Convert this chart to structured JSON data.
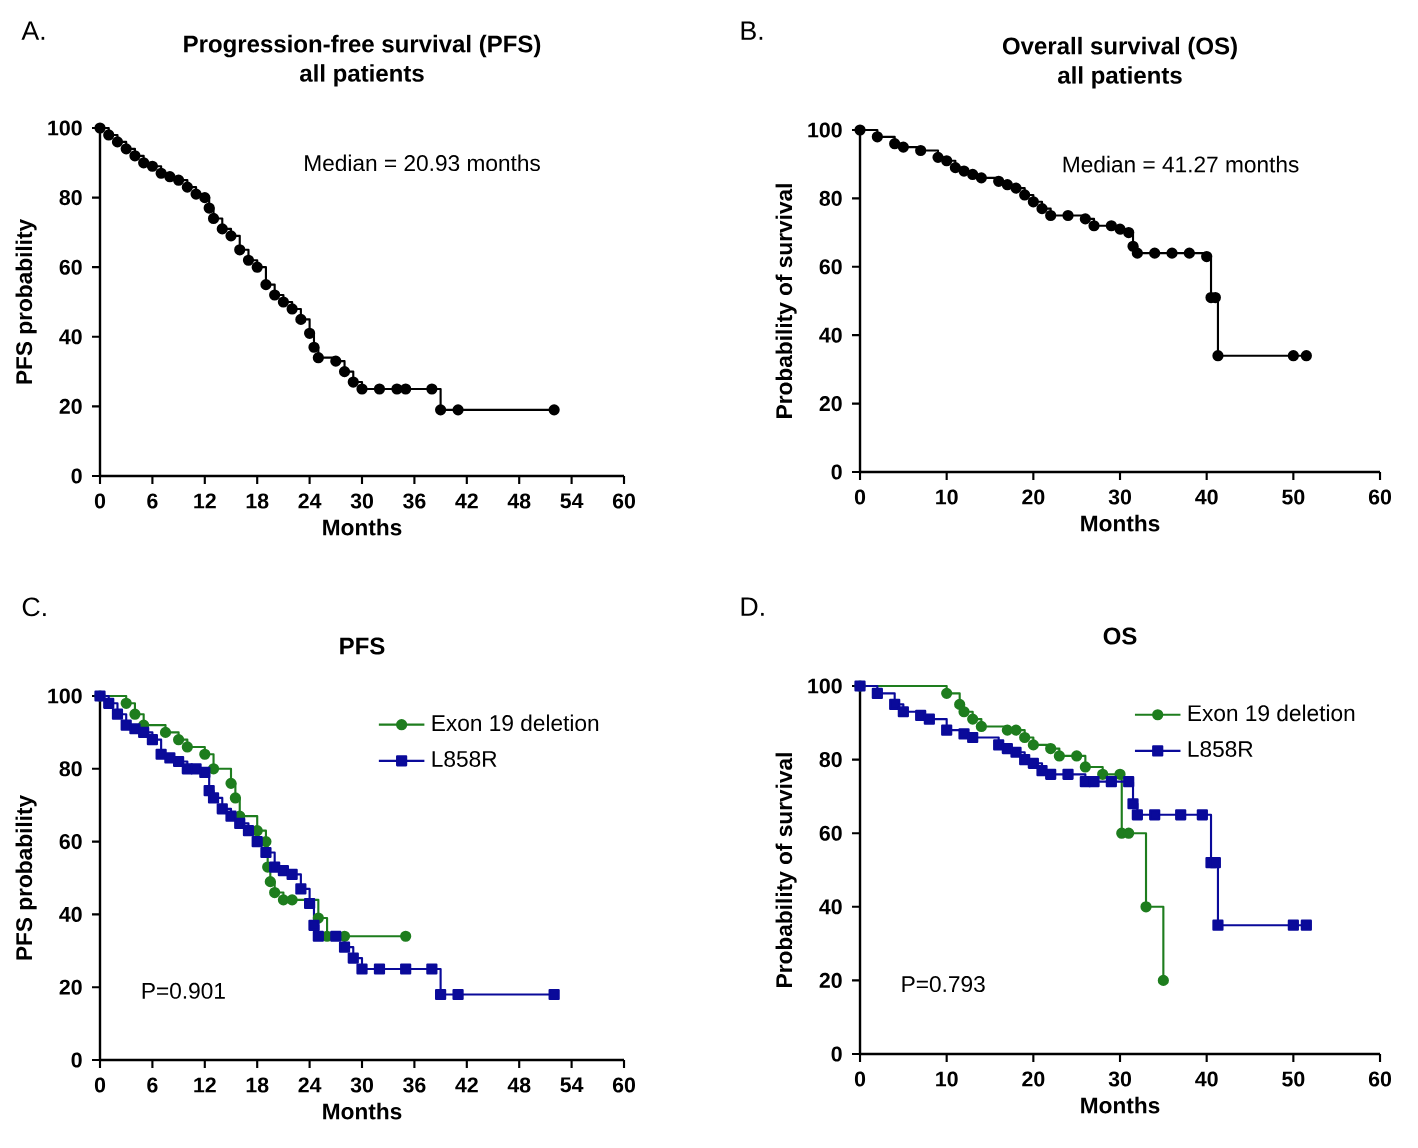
{
  "chart_data": [
    {
      "type": "step",
      "title": "Progression-free survival (PFS)",
      "subtitle": "all patients",
      "xlabel": "Months",
      "ylabel": "PFS probability",
      "annotations": [
        "A.",
        "Median = 20.93 months"
      ],
      "xlim": [
        0,
        60
      ],
      "ylim": [
        0,
        100
      ],
      "xticks": [
        0,
        6,
        12,
        18,
        24,
        30,
        36,
        42,
        48,
        54,
        60
      ],
      "yticks": [
        0,
        20,
        40,
        60,
        80,
        100
      ],
      "marker": "circle",
      "series": [
        {
          "color": "#000000",
          "x": [
            0,
            1,
            2,
            3,
            4,
            5,
            6,
            7,
            8,
            9,
            10,
            11,
            12,
            12.5,
            13,
            14,
            15,
            16,
            17,
            18,
            19,
            20,
            21,
            22,
            23,
            24,
            24.5,
            25,
            27,
            28,
            29,
            30,
            32,
            34,
            35,
            38,
            39,
            41,
            52
          ],
          "values": [
            100,
            98,
            96,
            94,
            92,
            90,
            89,
            87,
            86,
            85,
            83,
            81,
            80,
            77,
            74,
            71,
            69,
            65,
            62,
            60,
            55,
            52,
            50,
            48,
            45,
            41,
            37,
            34,
            33,
            30,
            27,
            25,
            25,
            25,
            25,
            25,
            19,
            19,
            19
          ]
        }
      ]
    },
    {
      "type": "step",
      "title": "Overall survival (OS)",
      "subtitle": "all patients",
      "xlabel": "Months",
      "ylabel": "Probability of survival",
      "annotations": [
        "B.",
        "Median = 41.27 months"
      ],
      "xlim": [
        0,
        60
      ],
      "ylim": [
        0,
        100
      ],
      "xticks": [
        0,
        10,
        20,
        30,
        40,
        50,
        60
      ],
      "yticks": [
        0,
        20,
        40,
        60,
        80,
        100
      ],
      "marker": "circle",
      "series": [
        {
          "color": "#000000",
          "x": [
            0,
            2,
            4,
            5,
            7,
            9,
            10,
            11,
            12,
            13,
            14,
            16,
            17,
            18,
            19,
            20,
            21,
            22,
            24,
            26,
            27,
            29,
            30,
            31,
            31.5,
            32,
            34,
            36,
            38,
            40,
            40.5,
            41,
            41.3,
            50,
            51.5
          ],
          "values": [
            100,
            98,
            96,
            95,
            94,
            92,
            91,
            89,
            88,
            87,
            86,
            85,
            84,
            83,
            81,
            79,
            77,
            75,
            75,
            74,
            72,
            72,
            71,
            70,
            66,
            64,
            64,
            64,
            64,
            63,
            51,
            51,
            34,
            34,
            34
          ]
        }
      ]
    },
    {
      "type": "step",
      "title": "PFS",
      "xlabel": "Months",
      "ylabel": "PFS probability",
      "annotations": [
        "C.",
        "P=0.901"
      ],
      "xlim": [
        0,
        60
      ],
      "ylim": [
        0,
        100
      ],
      "xticks": [
        0,
        6,
        12,
        18,
        24,
        30,
        36,
        42,
        48,
        54,
        60
      ],
      "yticks": [
        0,
        20,
        40,
        60,
        80,
        100
      ],
      "legend": "top right",
      "series": [
        {
          "name": "Exon 19 deletion",
          "color": "#1e7d1e",
          "marker": "circle",
          "x": [
            0,
            3,
            4,
            5,
            7.5,
            9,
            10,
            12,
            13,
            15,
            15.5,
            16,
            18,
            19,
            19.2,
            19.5,
            20,
            21,
            22,
            25,
            26,
            28,
            35
          ],
          "values": [
            100,
            98,
            95,
            92,
            90,
            88,
            86,
            84,
            80,
            76,
            72,
            67,
            63,
            60,
            53,
            49,
            46,
            44,
            44,
            39,
            34,
            34,
            34
          ]
        },
        {
          "name": "L858R",
          "color": "#0a0a9a",
          "marker": "square",
          "x": [
            0,
            1,
            2,
            3,
            4,
            5,
            6,
            7,
            8,
            9,
            10,
            11,
            12,
            12.5,
            13,
            14,
            15,
            16,
            17,
            18,
            19,
            20,
            21,
            22,
            23,
            24,
            24.5,
            25,
            27,
            28,
            29,
            30,
            32,
            35,
            38,
            39,
            41,
            52
          ],
          "values": [
            100,
            98,
            95,
            92,
            91,
            90,
            88,
            84,
            83,
            82,
            80,
            80,
            79,
            74,
            72,
            69,
            67,
            65,
            63,
            60,
            57,
            53,
            52,
            51,
            47,
            43,
            37,
            34,
            34,
            31,
            28,
            25,
            25,
            25,
            25,
            18,
            18,
            18
          ]
        }
      ]
    },
    {
      "type": "step",
      "title": "OS",
      "xlabel": "Months",
      "ylabel": "Probability of survival",
      "annotations": [
        "D.",
        "P=0.793"
      ],
      "xlim": [
        0,
        60
      ],
      "ylim": [
        0,
        100
      ],
      "xticks": [
        0,
        10,
        20,
        30,
        40,
        50,
        60
      ],
      "yticks": [
        0,
        20,
        40,
        60,
        80,
        100
      ],
      "legend": "top right",
      "series": [
        {
          "name": "Exon 19 deletion",
          "color": "#1e7d1e",
          "marker": "circle",
          "x": [
            0,
            10,
            11.5,
            12,
            13,
            14,
            17,
            18,
            19,
            20,
            22,
            23,
            25,
            26,
            28,
            30,
            30.2,
            31,
            33,
            35
          ],
          "values": [
            100,
            98,
            95,
            93,
            91,
            89,
            88,
            88,
            86,
            84,
            83,
            81,
            81,
            78,
            76,
            76,
            60,
            60,
            40,
            20
          ]
        },
        {
          "name": "L858R",
          "color": "#0a0a9a",
          "marker": "square",
          "x": [
            0,
            2,
            4,
            5,
            7,
            8,
            10,
            12,
            13,
            16,
            17,
            18,
            19,
            20,
            21,
            22,
            24,
            26,
            27,
            29,
            31,
            31.5,
            32,
            34,
            37,
            39.5,
            40.5,
            41,
            41.3,
            50,
            51.5
          ],
          "values": [
            100,
            98,
            95,
            93,
            92,
            91,
            88,
            87,
            86,
            84,
            83,
            82,
            80,
            79,
            77,
            76,
            76,
            74,
            74,
            74,
            74,
            68,
            65,
            65,
            65,
            65,
            52,
            52,
            35,
            35,
            35
          ]
        }
      ]
    }
  ]
}
